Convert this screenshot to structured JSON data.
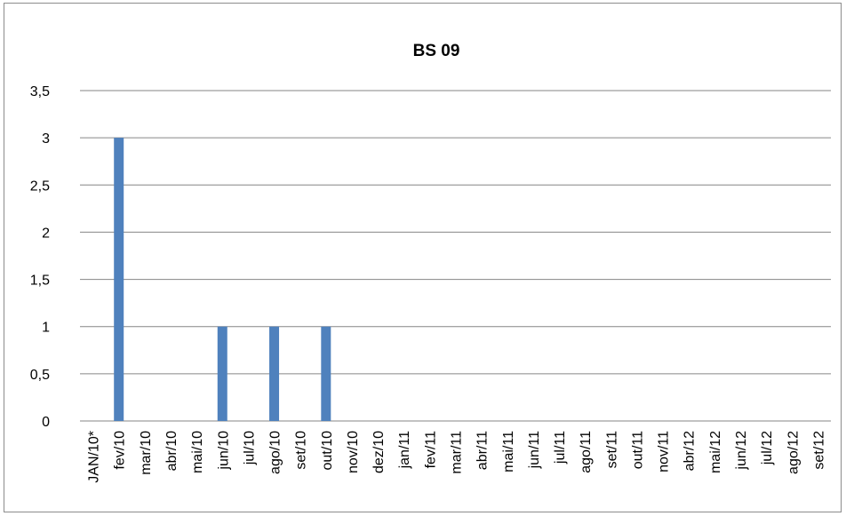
{
  "chart_data": {
    "type": "bar",
    "title": "BS 09",
    "xlabel": "",
    "ylabel": "",
    "ylim": [
      0,
      3.5
    ],
    "yticks": [
      "0",
      "0,5",
      "1",
      "1,5",
      "2",
      "2,5",
      "3",
      "3,5"
    ],
    "grid": true,
    "bar_color": "#4f81bd",
    "categories": [
      "JAN/10*",
      "fev/10",
      "mar/10",
      "abr/10",
      "mai/10",
      "jun/10",
      "jul/10",
      "ago/10",
      "set/10",
      "out/10",
      "nov/10",
      "dez/10",
      "jan/11",
      "fev/11",
      "mar/11",
      "abr/11",
      "mai/11",
      "jun/11",
      "jul/11",
      "ago/11",
      "set/11",
      "out/11",
      "nov/11",
      "abr/12",
      "mai/12",
      "jun/12",
      "jul/12",
      "ago/12",
      "set/12"
    ],
    "values": [
      0,
      3,
      0,
      0,
      0,
      1,
      0,
      1,
      0,
      1,
      0,
      0,
      0,
      0,
      0,
      0,
      0,
      0,
      0,
      0,
      0,
      0,
      0,
      0,
      0,
      0,
      0,
      0,
      0
    ]
  }
}
